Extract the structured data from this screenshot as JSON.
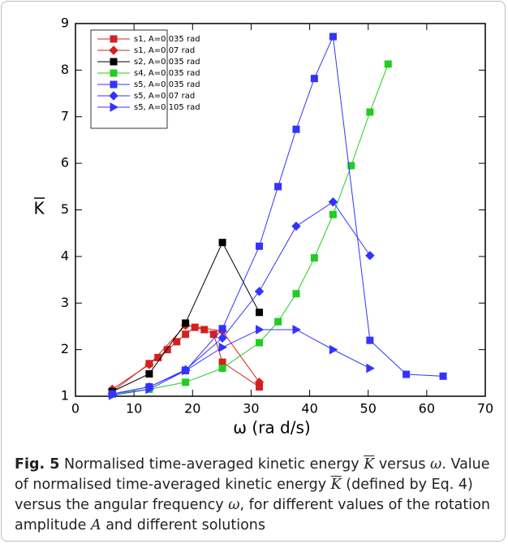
{
  "chart_data": {
    "type": "line",
    "xlabel": "ω (ra d/s)",
    "ylabel": "K",
    "xlim": [
      0,
      70
    ],
    "xticks": [
      0,
      10,
      20,
      30,
      40,
      50,
      60,
      70
    ],
    "ylim": [
      1,
      9
    ],
    "yticks": [
      1,
      2,
      3,
      4,
      5,
      6,
      7,
      8,
      9
    ],
    "legend": "upper left",
    "series": [
      {
        "name": "s1, A=0.035 rad",
        "color": "#d42020",
        "marker": "square",
        "x": [
          6.28,
          12.6,
          14.1,
          15.7,
          17.3,
          18.8,
          20.4,
          22.0,
          23.6,
          25.1,
          31.4
        ],
        "values": [
          1.1,
          1.7,
          1.83,
          2.0,
          2.17,
          2.33,
          2.48,
          2.43,
          2.33,
          1.73,
          1.2
        ]
      },
      {
        "name": "s1, A=0.07 rad",
        "color": "#d42020",
        "marker": "diamond",
        "x": [
          6.28,
          12.6,
          18.8,
          25.1,
          31.4
        ],
        "values": [
          1.15,
          1.68,
          2.52,
          2.4,
          1.3
        ]
      },
      {
        "name": "s2, A=0.035 rad",
        "color": "#000000",
        "marker": "square",
        "x": [
          6.28,
          12.6,
          18.8,
          25.1,
          31.4
        ],
        "values": [
          1.1,
          1.48,
          2.57,
          4.3,
          2.8
        ]
      },
      {
        "name": "s4, A=0.035 rad",
        "color": "#22cc22",
        "marker": "square",
        "x": [
          6.28,
          12.6,
          18.8,
          25.1,
          31.4,
          34.6,
          37.7,
          40.8,
          44.0,
          47.1,
          50.3,
          53.4
        ],
        "values": [
          1.05,
          1.15,
          1.3,
          1.6,
          2.15,
          2.6,
          3.2,
          3.97,
          4.9,
          5.95,
          7.1,
          8.13
        ]
      },
      {
        "name": "s5, A=0.035 rad",
        "color": "#3333ff",
        "marker": "square",
        "x": [
          6.28,
          12.6,
          18.8,
          25.1,
          31.4,
          34.6,
          37.7,
          40.8,
          44.0,
          50.3,
          56.5,
          62.8
        ],
        "values": [
          1.05,
          1.2,
          1.55,
          2.45,
          4.22,
          5.5,
          6.73,
          7.82,
          8.72,
          2.2,
          1.47,
          1.43
        ]
      },
      {
        "name": "s5, A=0.07 rad",
        "color": "#3333ff",
        "marker": "diamond",
        "x": [
          6.28,
          12.6,
          18.8,
          25.1,
          31.4,
          37.7,
          44.0,
          50.3
        ],
        "values": [
          1.05,
          1.2,
          1.57,
          2.25,
          3.25,
          4.65,
          5.17,
          4.02
        ]
      },
      {
        "name": "s5, A=0.105 rad",
        "color": "#3333ff",
        "marker": "triangle",
        "x": [
          6.28,
          12.6,
          18.8,
          25.1,
          31.4,
          37.7,
          44.0,
          50.3
        ],
        "values": [
          1.02,
          1.15,
          1.55,
          2.05,
          2.43,
          2.43,
          2.0,
          1.6
        ]
      }
    ]
  },
  "caption": {
    "label": "Fig. 5",
    "parts": [
      "Normalised time-averaged kinetic energy ",
      "K",
      " versus ",
      "ω",
      ". Value of normalised time-averaged kinetic energy ",
      "K",
      " (defined by Eq. 4) versus the angular frequency ",
      "ω",
      ", for different values of the rotation amplitude ",
      "A",
      " and different solutions"
    ]
  }
}
